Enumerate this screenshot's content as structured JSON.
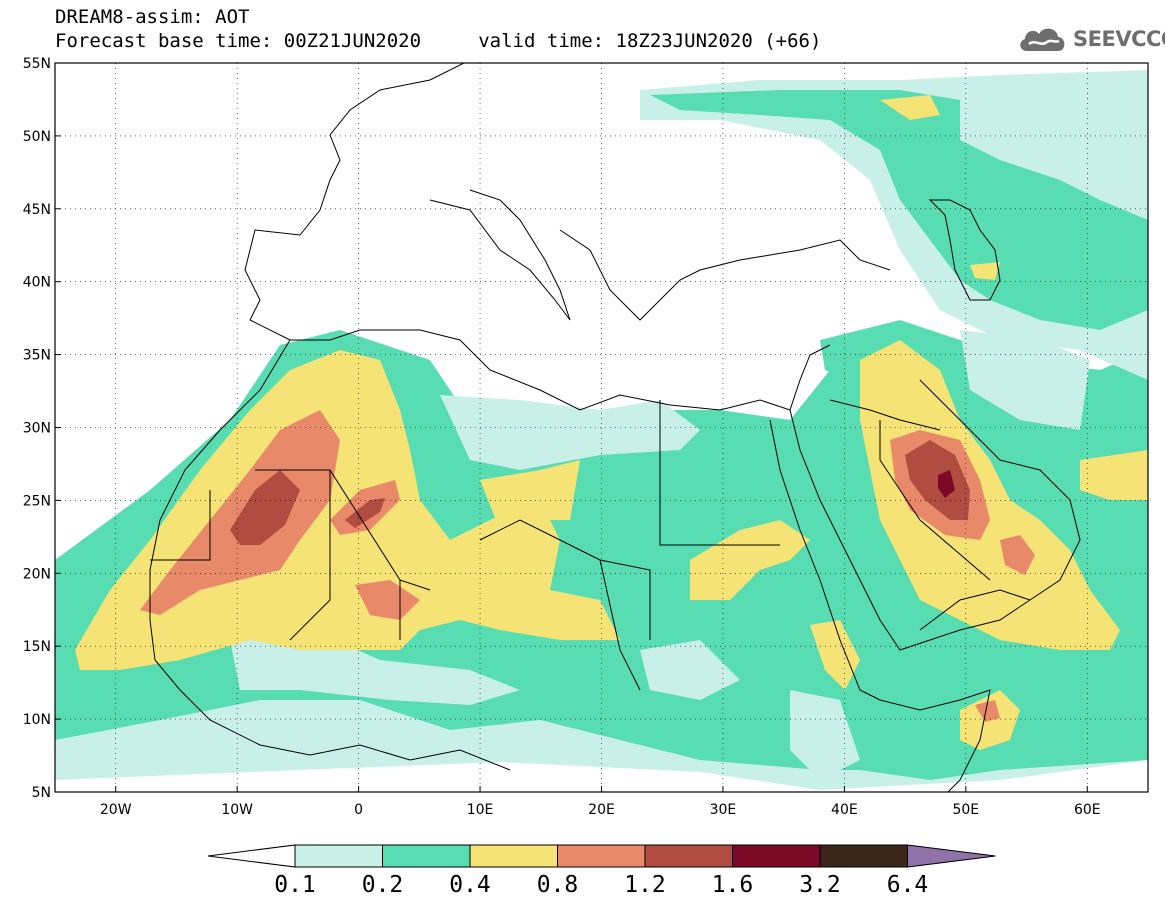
{
  "header": {
    "title_line1": "DREAM8-assim: AOT",
    "title_line2": "Forecast base time: 00Z21JUN2020     valid time: 18Z23JUN2020 (+66)"
  },
  "logo": {
    "text": "SEEVCCC",
    "icon": "cloud-logo-icon"
  },
  "axes": {
    "lat_labels": [
      "55N",
      "50N",
      "45N",
      "40N",
      "35N",
      "30N",
      "25N",
      "20N",
      "15N",
      "10N",
      "5N"
    ],
    "lat_values": [
      55,
      50,
      45,
      40,
      35,
      30,
      25,
      20,
      15,
      10,
      5
    ],
    "lon_labels": [
      "20W",
      "10W",
      "0",
      "10E",
      "20E",
      "30E",
      "40E",
      "50E",
      "60E"
    ],
    "lon_values": [
      -20,
      -10,
      0,
      10,
      20,
      30,
      40,
      50,
      60
    ],
    "lon_range": [
      -25,
      65
    ],
    "lat_range": [
      5,
      55
    ],
    "grid": "dotted"
  },
  "colorbar": {
    "levels": [
      "0.1",
      "0.2",
      "0.4",
      "0.8",
      "1.2",
      "1.6",
      "3.2",
      "6.4"
    ],
    "colors": [
      "#ffffff",
      "#c8f0e8",
      "#58dcb2",
      "#f5e375",
      "#e8896a",
      "#b04c40",
      "#7c0a26",
      "#3b2418",
      "#8e72a8"
    ]
  },
  "field_colors": {
    "c02": "#c8f0e8",
    "c04": "#58dcb2",
    "c08": "#f5e375",
    "c12": "#e8896a",
    "c16": "#b04c40",
    "c32": "#7c0a26"
  }
}
